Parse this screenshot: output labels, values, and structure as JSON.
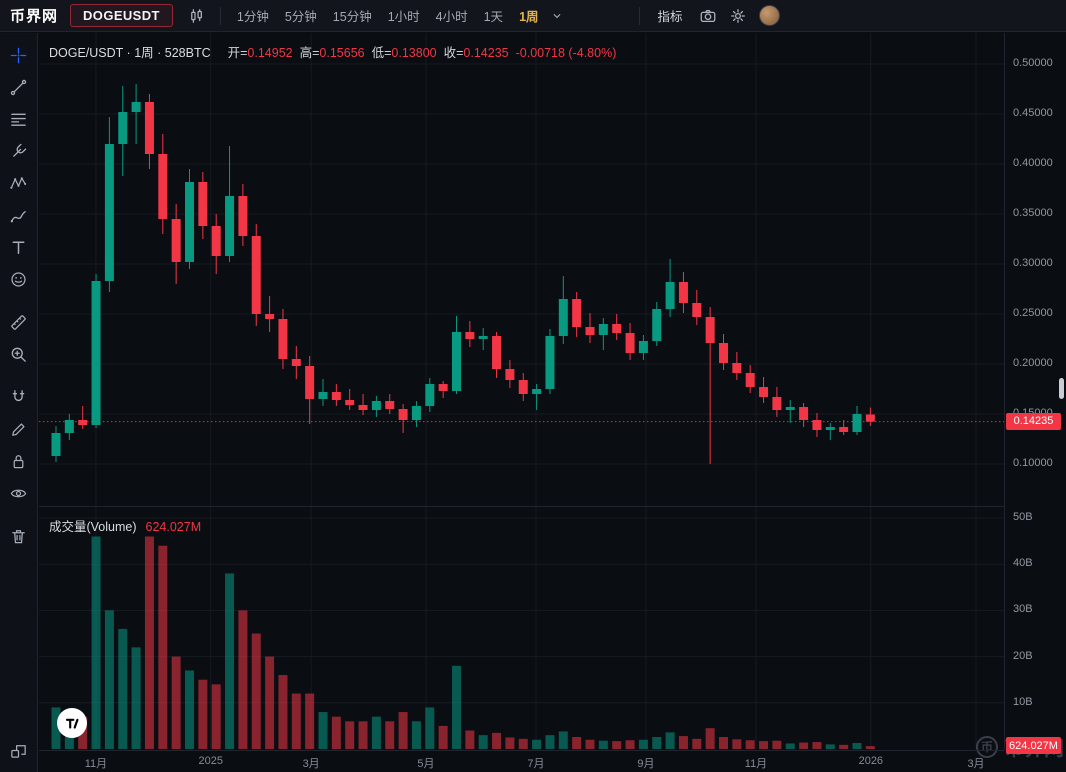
{
  "topbar": {
    "logo": "币界网",
    "symbol": "DOGEUSDT",
    "timeframes": [
      "1分钟",
      "5分钟",
      "15分钟",
      "1小时",
      "4小时",
      "1天",
      "1周"
    ],
    "selected_timeframe": "1周",
    "selected_index": 6,
    "indicators_label": "指标",
    "icons": [
      "candles-style-icon",
      "chevron-down-icon",
      "camera-icon",
      "gear-icon",
      "user-avatar"
    ]
  },
  "toolbar": {
    "tools": [
      "crosshair",
      "trend-line",
      "fib-retracement",
      "pitchfork",
      "xabcd-pattern",
      "brush",
      "text",
      "emoji",
      "ruler",
      "zoom-in",
      "magnet",
      "pencil",
      "lock",
      "eye",
      "trash",
      "object-tree"
    ],
    "active_tool": "crosshair"
  },
  "legend": {
    "title": "DOGE/USDT · 1周 · 528BTC",
    "open_label": "开=",
    "open": "0.14952",
    "high_label": "高=",
    "high": "0.15656",
    "low_label": "低=",
    "low": "0.13800",
    "close_label": "收=",
    "close": "0.14235",
    "change": "-0.00718 (-4.80%)"
  },
  "volume_legend": {
    "title": "成交量(Volume)",
    "value": "624.027M"
  },
  "watermark": {
    "icon_char": "币",
    "text": "币界网"
  },
  "chart_data": {
    "type": "candlestick+volume",
    "symbol": "DOGE/USDT",
    "interval": "1周",
    "source": "528BTC",
    "title": "DOGE/USDT · 1周 · 528BTC",
    "colors": {
      "up": "#089981",
      "down": "#f23645",
      "grid": "#161b23",
      "accent": "#e2b24e"
    },
    "y_axis_range": [
      0.058,
      0.531
    ],
    "y_ticks": [
      {
        "label": "0.50000",
        "value": 0.5
      },
      {
        "label": "0.45000",
        "value": 0.45
      },
      {
        "label": "0.40000",
        "value": 0.4
      },
      {
        "label": "0.35000",
        "value": 0.35
      },
      {
        "label": "0.30000",
        "value": 0.3
      },
      {
        "label": "0.25000",
        "value": 0.25
      },
      {
        "label": "0.20000",
        "value": 0.2
      },
      {
        "label": "0.15000",
        "value": 0.15
      },
      {
        "label": "0.10000",
        "value": 0.1
      }
    ],
    "v_ticks": [
      {
        "label": "50B",
        "value": 50
      },
      {
        "label": "40B",
        "value": 40
      },
      {
        "label": "30B",
        "value": 30
      },
      {
        "label": "20B",
        "value": 20
      },
      {
        "label": "10B",
        "value": 10
      }
    ],
    "x_ticks": [
      {
        "label": "11月",
        "pos": 0.059
      },
      {
        "label": "2025",
        "pos": 0.178
      },
      {
        "label": "3月",
        "pos": 0.282
      },
      {
        "label": "5月",
        "pos": 0.401
      },
      {
        "label": "7月",
        "pos": 0.515
      },
      {
        "label": "9月",
        "pos": 0.629
      },
      {
        "label": "11月",
        "pos": 0.743
      },
      {
        "label": "2026",
        "pos": 0.862
      },
      {
        "label": "3月",
        "pos": 0.971
      }
    ],
    "candles_format": [
      "open",
      "high",
      "low",
      "close",
      "volume_B"
    ],
    "candles": [
      [
        0.108,
        0.138,
        0.102,
        0.131,
        9
      ],
      [
        0.131,
        0.15,
        0.124,
        0.144,
        8
      ],
      [
        0.144,
        0.158,
        0.135,
        0.139,
        7
      ],
      [
        0.139,
        0.29,
        0.136,
        0.283,
        46
      ],
      [
        0.283,
        0.447,
        0.272,
        0.42,
        30
      ],
      [
        0.42,
        0.478,
        0.388,
        0.452,
        26
      ],
      [
        0.452,
        0.48,
        0.42,
        0.462,
        22
      ],
      [
        0.462,
        0.47,
        0.395,
        0.41,
        46
      ],
      [
        0.41,
        0.43,
        0.33,
        0.345,
        44
      ],
      [
        0.345,
        0.36,
        0.28,
        0.302,
        20
      ],
      [
        0.302,
        0.395,
        0.295,
        0.382,
        17
      ],
      [
        0.382,
        0.392,
        0.325,
        0.338,
        15
      ],
      [
        0.338,
        0.35,
        0.29,
        0.308,
        14
      ],
      [
        0.308,
        0.418,
        0.302,
        0.368,
        38
      ],
      [
        0.368,
        0.38,
        0.318,
        0.328,
        30
      ],
      [
        0.328,
        0.34,
        0.238,
        0.25,
        25
      ],
      [
        0.25,
        0.268,
        0.232,
        0.245,
        20
      ],
      [
        0.245,
        0.255,
        0.195,
        0.205,
        16
      ],
      [
        0.205,
        0.218,
        0.185,
        0.198,
        12
      ],
      [
        0.198,
        0.208,
        0.14,
        0.165,
        12
      ],
      [
        0.165,
        0.185,
        0.158,
        0.172,
        8
      ],
      [
        0.172,
        0.18,
        0.158,
        0.164,
        7
      ],
      [
        0.164,
        0.175,
        0.154,
        0.159,
        6
      ],
      [
        0.159,
        0.17,
        0.149,
        0.154,
        6
      ],
      [
        0.154,
        0.168,
        0.147,
        0.163,
        7
      ],
      [
        0.163,
        0.17,
        0.15,
        0.155,
        6
      ],
      [
        0.155,
        0.16,
        0.131,
        0.144,
        8
      ],
      [
        0.144,
        0.163,
        0.137,
        0.158,
        6
      ],
      [
        0.158,
        0.186,
        0.152,
        0.18,
        9
      ],
      [
        0.18,
        0.183,
        0.166,
        0.173,
        5
      ],
      [
        0.173,
        0.248,
        0.17,
        0.232,
        18
      ],
      [
        0.232,
        0.243,
        0.217,
        0.225,
        4
      ],
      [
        0.225,
        0.236,
        0.214,
        0.228,
        3
      ],
      [
        0.228,
        0.232,
        0.186,
        0.195,
        3.5
      ],
      [
        0.195,
        0.204,
        0.176,
        0.184,
        2.5
      ],
      [
        0.184,
        0.191,
        0.163,
        0.17,
        2.2
      ],
      [
        0.17,
        0.18,
        0.154,
        0.175,
        2
      ],
      [
        0.175,
        0.235,
        0.17,
        0.228,
        3
      ],
      [
        0.228,
        0.288,
        0.22,
        0.265,
        3.8
      ],
      [
        0.265,
        0.272,
        0.227,
        0.237,
        2.6
      ],
      [
        0.237,
        0.251,
        0.221,
        0.229,
        2
      ],
      [
        0.229,
        0.246,
        0.214,
        0.24,
        1.8
      ],
      [
        0.24,
        0.25,
        0.224,
        0.231,
        1.7
      ],
      [
        0.231,
        0.241,
        0.204,
        0.211,
        1.9
      ],
      [
        0.211,
        0.229,
        0.204,
        0.223,
        2
      ],
      [
        0.223,
        0.262,
        0.218,
        0.255,
        2.6
      ],
      [
        0.255,
        0.305,
        0.247,
        0.282,
        3.6
      ],
      [
        0.282,
        0.292,
        0.251,
        0.261,
        2.8
      ],
      [
        0.261,
        0.274,
        0.239,
        0.247,
        2.2
      ],
      [
        0.247,
        0.257,
        0.1,
        0.221,
        4.5
      ],
      [
        0.221,
        0.23,
        0.194,
        0.201,
        2.6
      ],
      [
        0.201,
        0.212,
        0.184,
        0.191,
        2.1
      ],
      [
        0.191,
        0.199,
        0.171,
        0.177,
        1.9
      ],
      [
        0.177,
        0.187,
        0.161,
        0.167,
        1.7
      ],
      [
        0.167,
        0.177,
        0.147,
        0.154,
        1.8
      ],
      [
        0.154,
        0.164,
        0.141,
        0.157,
        1.2
      ],
      [
        0.157,
        0.161,
        0.137,
        0.144,
        1.4
      ],
      [
        0.144,
        0.151,
        0.127,
        0.134,
        1.5
      ],
      [
        0.134,
        0.141,
        0.124,
        0.137,
        1.0
      ],
      [
        0.137,
        0.144,
        0.129,
        0.132,
        0.9
      ],
      [
        0.132,
        0.158,
        0.129,
        0.15,
        1.3
      ],
      [
        0.14952,
        0.15656,
        0.138,
        0.14235,
        0.624
      ]
    ],
    "last_candle": {
      "open": 0.14952,
      "high": 0.15656,
      "low": 0.138,
      "close": 0.14235,
      "change": -0.00718,
      "change_pct": -4.8
    },
    "last_price": 0.14235,
    "last_price_label": "0.14235",
    "last_volume_value": 0.624,
    "last_volume_label": "624.027M"
  }
}
